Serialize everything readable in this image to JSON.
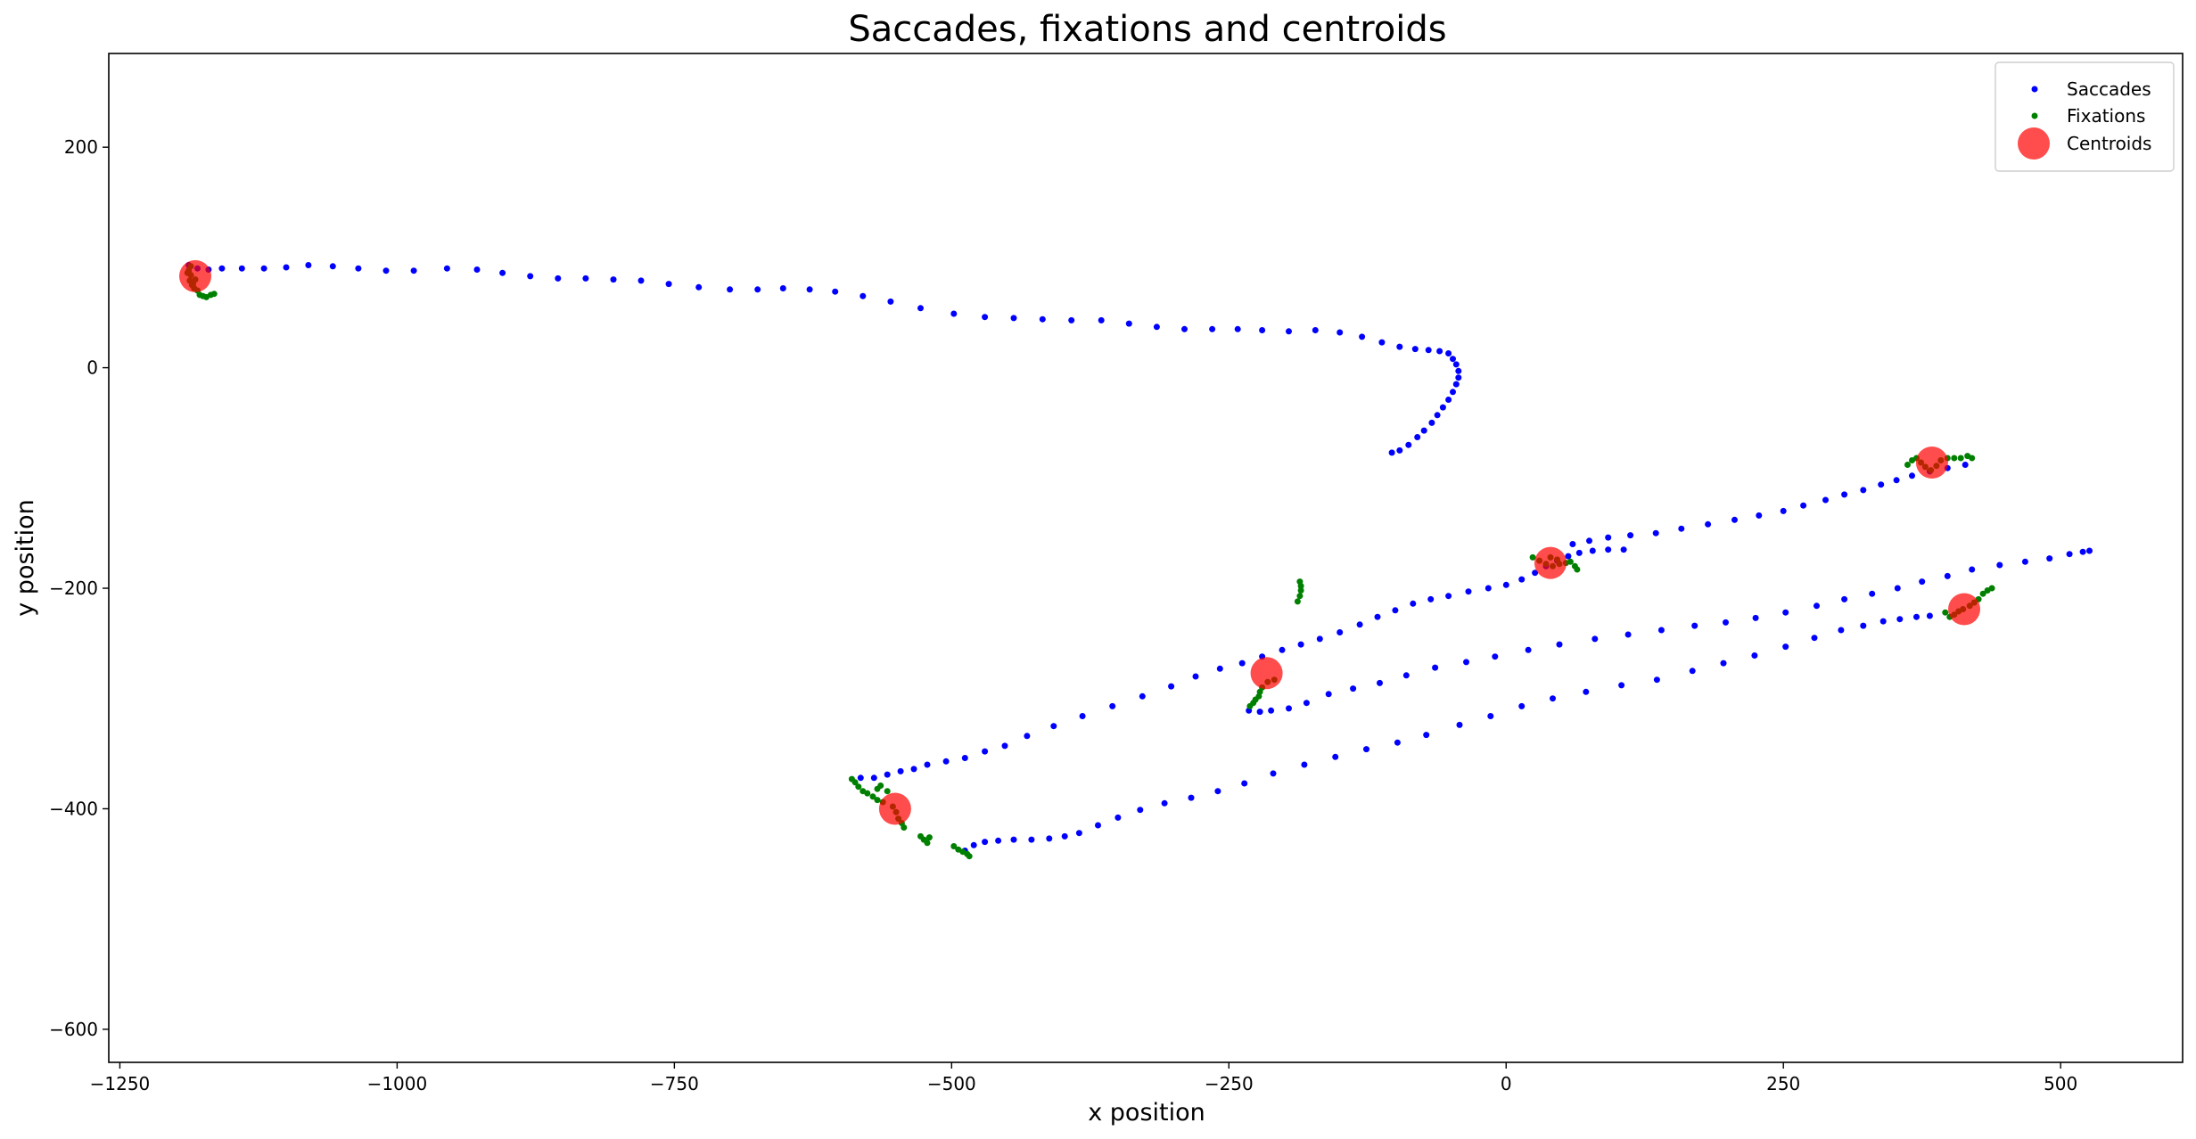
{
  "chart_data": {
    "type": "scatter",
    "title": "Saccades, fixations and centroids",
    "xlabel": "x position",
    "ylabel": "y position",
    "xlim": [
      -1260,
      610
    ],
    "ylim": [
      -630,
      285
    ],
    "xticks": [
      -1250,
      -1000,
      -750,
      -500,
      -250,
      0,
      250,
      500
    ],
    "yticks": [
      -600,
      -400,
      -200,
      0,
      200
    ],
    "grid": false,
    "legend_position": "top-right",
    "series": [
      {
        "name": "Saccades",
        "color": "#0000ff",
        "marker": "small-dot",
        "points": [
          [
            -1188,
            93
          ],
          [
            -1180,
            90
          ],
          [
            -1170,
            89
          ],
          [
            -1158,
            90
          ],
          [
            -1140,
            90
          ],
          [
            -1120,
            90
          ],
          [
            -1100,
            91
          ],
          [
            -1080,
            93
          ],
          [
            -1058,
            92
          ],
          [
            -1035,
            90
          ],
          [
            -1010,
            88
          ],
          [
            -985,
            88
          ],
          [
            -955,
            90
          ],
          [
            -928,
            89
          ],
          [
            -905,
            86
          ],
          [
            -880,
            83
          ],
          [
            -855,
            81
          ],
          [
            -830,
            81
          ],
          [
            -805,
            80
          ],
          [
            -780,
            79
          ],
          [
            -755,
            76
          ],
          [
            -728,
            73
          ],
          [
            -700,
            71
          ],
          [
            -675,
            71
          ],
          [
            -652,
            72
          ],
          [
            -628,
            71
          ],
          [
            -605,
            69
          ],
          [
            -580,
            65
          ],
          [
            -555,
            60
          ],
          [
            -528,
            54
          ],
          [
            -498,
            49
          ],
          [
            -470,
            46
          ],
          [
            -444,
            45
          ],
          [
            -418,
            44
          ],
          [
            -392,
            43
          ],
          [
            -365,
            43
          ],
          [
            -340,
            40
          ],
          [
            -315,
            37
          ],
          [
            -290,
            35
          ],
          [
            -265,
            35
          ],
          [
            -242,
            35
          ],
          [
            -220,
            34
          ],
          [
            -196,
            33
          ],
          [
            -172,
            34
          ],
          [
            -150,
            32
          ],
          [
            -130,
            28
          ],
          [
            -112,
            23
          ],
          [
            -96,
            19
          ],
          [
            -82,
            17
          ],
          [
            -70,
            16
          ],
          [
            -60,
            15
          ],
          [
            -52,
            13
          ],
          [
            -48,
            8
          ],
          [
            -45,
            3
          ],
          [
            -43,
            -3
          ],
          [
            -43,
            -9
          ],
          [
            -45,
            -15
          ],
          [
            -48,
            -22
          ],
          [
            -52,
            -29
          ],
          [
            -57,
            -36
          ],
          [
            -62,
            -43
          ],
          [
            -67,
            -50
          ],
          [
            -74,
            -57
          ],
          [
            -80,
            -63
          ],
          [
            -88,
            -70
          ],
          [
            -96,
            -75
          ],
          [
            -103,
            -77
          ],
          [
            -582,
            -372
          ],
          [
            -570,
            -372
          ],
          [
            -558,
            -369
          ],
          [
            -546,
            -366
          ],
          [
            -534,
            -364
          ],
          [
            -522,
            -360
          ],
          [
            -505,
            -357
          ],
          [
            -488,
            -354
          ],
          [
            -470,
            -348
          ],
          [
            -452,
            -343
          ],
          [
            -432,
            -334
          ],
          [
            -408,
            -325
          ],
          [
            -382,
            -316
          ],
          [
            -355,
            -307
          ],
          [
            -328,
            -298
          ],
          [
            -302,
            -289
          ],
          [
            -280,
            -280
          ],
          [
            -258,
            -273
          ],
          [
            -238,
            -268
          ],
          [
            -220,
            -262
          ],
          [
            -202,
            -256
          ],
          [
            -185,
            -251
          ],
          [
            -168,
            -246
          ],
          [
            -150,
            -240
          ],
          [
            -132,
            -233
          ],
          [
            -116,
            -226
          ],
          [
            -100,
            -220
          ],
          [
            -84,
            -214
          ],
          [
            -68,
            -210
          ],
          [
            -52,
            -207
          ],
          [
            -34,
            -203
          ],
          [
            -16,
            -200
          ],
          [
            0,
            -197
          ],
          [
            14,
            -192
          ],
          [
            26,
            -186
          ],
          [
            36,
            -180
          ],
          [
            46,
            -175
          ],
          [
            56,
            -171
          ],
          [
            66,
            -168
          ],
          [
            78,
            -166
          ],
          [
            92,
            -165
          ],
          [
            106,
            -165
          ],
          [
            60,
            -160
          ],
          [
            75,
            -157
          ],
          [
            92,
            -154
          ],
          [
            112,
            -152
          ],
          [
            135,
            -150
          ],
          [
            158,
            -146
          ],
          [
            182,
            -142
          ],
          [
            206,
            -138
          ],
          [
            228,
            -134
          ],
          [
            250,
            -130
          ],
          [
            268,
            -125
          ],
          [
            288,
            -120
          ],
          [
            305,
            -115
          ],
          [
            322,
            -111
          ],
          [
            338,
            -106
          ],
          [
            352,
            -102
          ],
          [
            366,
            -98
          ],
          [
            382,
            -94
          ],
          [
            398,
            -91
          ],
          [
            414,
            -88
          ],
          [
            -232,
            -311
          ],
          [
            -222,
            -312
          ],
          [
            -212,
            -311
          ],
          [
            -196,
            -309
          ],
          [
            -180,
            -304
          ],
          [
            -160,
            -296
          ],
          [
            -138,
            -291
          ],
          [
            -114,
            -286
          ],
          [
            -90,
            -279
          ],
          [
            -64,
            -272
          ],
          [
            -36,
            -267
          ],
          [
            -10,
            -262
          ],
          [
            20,
            -256
          ],
          [
            48,
            -251
          ],
          [
            80,
            -246
          ],
          [
            110,
            -242
          ],
          [
            140,
            -238
          ],
          [
            170,
            -234
          ],
          [
            198,
            -231
          ],
          [
            225,
            -227
          ],
          [
            252,
            -222
          ],
          [
            280,
            -216
          ],
          [
            305,
            -210
          ],
          [
            330,
            -205
          ],
          [
            353,
            -200
          ],
          [
            375,
            -194
          ],
          [
            398,
            -189
          ],
          [
            420,
            -183
          ],
          [
            445,
            -179
          ],
          [
            468,
            -176
          ],
          [
            490,
            -173
          ],
          [
            508,
            -169
          ],
          [
            520,
            -167
          ],
          [
            526,
            -166
          ],
          [
            -488,
            -438
          ],
          [
            -480,
            -433
          ],
          [
            -470,
            -430
          ],
          [
            -458,
            -429
          ],
          [
            -444,
            -428
          ],
          [
            -428,
            -428
          ],
          [
            -412,
            -427
          ],
          [
            -398,
            -425
          ],
          [
            -385,
            -422
          ],
          [
            -368,
            -415
          ],
          [
            -350,
            -408
          ],
          [
            -330,
            -401
          ],
          [
            -308,
            -395
          ],
          [
            -284,
            -390
          ],
          [
            -260,
            -384
          ],
          [
            -236,
            -377
          ],
          [
            -210,
            -368
          ],
          [
            -182,
            -360
          ],
          [
            -154,
            -353
          ],
          [
            -126,
            -346
          ],
          [
            -98,
            -340
          ],
          [
            -72,
            -333
          ],
          [
            -42,
            -324
          ],
          [
            -14,
            -316
          ],
          [
            14,
            -307
          ],
          [
            42,
            -300
          ],
          [
            72,
            -294
          ],
          [
            104,
            -288
          ],
          [
            136,
            -283
          ],
          [
            168,
            -275
          ],
          [
            196,
            -268
          ],
          [
            224,
            -261
          ],
          [
            252,
            -253
          ],
          [
            278,
            -245
          ],
          [
            302,
            -238
          ],
          [
            322,
            -234
          ],
          [
            340,
            -230
          ],
          [
            355,
            -228
          ],
          [
            370,
            -226
          ],
          [
            382,
            -225
          ]
        ]
      },
      {
        "name": "Fixations",
        "color": "#008000",
        "marker": "small-dot",
        "points": [
          [
            -1188,
            88
          ],
          [
            -1186,
            84
          ],
          [
            -1187,
            79
          ],
          [
            -1185,
            75
          ],
          [
            -1183,
            72
          ],
          [
            -1184,
            76
          ],
          [
            -1182,
            80
          ],
          [
            -1186,
            92
          ],
          [
            -1189,
            86
          ],
          [
            -1178,
            66
          ],
          [
            -1175,
            65
          ],
          [
            -1172,
            64
          ],
          [
            -1168,
            66
          ],
          [
            -1165,
            67
          ],
          [
            -1180,
            70
          ],
          [
            -590,
            -373
          ],
          [
            -587,
            -376
          ],
          [
            -584,
            -380
          ],
          [
            -580,
            -384
          ],
          [
            -576,
            -386
          ],
          [
            -571,
            -389
          ],
          [
            -567,
            -392
          ],
          [
            -562,
            -394
          ],
          [
            -567,
            -382
          ],
          [
            -564,
            -379
          ],
          [
            -558,
            -384
          ],
          [
            -553,
            -398
          ],
          [
            -550,
            -403
          ],
          [
            -548,
            -409
          ],
          [
            -545,
            -413
          ],
          [
            -543,
            -417
          ],
          [
            -528,
            -425
          ],
          [
            -525,
            -428
          ],
          [
            -522,
            -431
          ],
          [
            -520,
            -426
          ],
          [
            -498,
            -434
          ],
          [
            -494,
            -437
          ],
          [
            -490,
            -439
          ],
          [
            -486,
            -441
          ],
          [
            -484,
            -443
          ],
          [
            -231,
            -307
          ],
          [
            -228,
            -304
          ],
          [
            -226,
            -301
          ],
          [
            -223,
            -298
          ],
          [
            -222,
            -294
          ],
          [
            -220,
            -290
          ],
          [
            -215,
            -285
          ],
          [
            -209,
            -283
          ],
          [
            -186,
            -194
          ],
          [
            -185,
            -198
          ],
          [
            -185,
            -202
          ],
          [
            -186,
            -207
          ],
          [
            -188,
            -212
          ],
          [
            24,
            -172
          ],
          [
            30,
            -175
          ],
          [
            36,
            -178
          ],
          [
            42,
            -180
          ],
          [
            48,
            -178
          ],
          [
            54,
            -177
          ],
          [
            58,
            -176
          ],
          [
            62,
            -180
          ],
          [
            64,
            -183
          ],
          [
            40,
            -172
          ],
          [
            46,
            -174
          ],
          [
            362,
            -88
          ],
          [
            366,
            -84
          ],
          [
            370,
            -82
          ],
          [
            374,
            -86
          ],
          [
            378,
            -90
          ],
          [
            383,
            -93
          ],
          [
            388,
            -89
          ],
          [
            392,
            -84
          ],
          [
            398,
            -82
          ],
          [
            404,
            -82
          ],
          [
            410,
            -82
          ],
          [
            416,
            -80
          ],
          [
            420,
            -82
          ],
          [
            396,
            -222
          ],
          [
            400,
            -226
          ],
          [
            404,
            -224
          ],
          [
            408,
            -221
          ],
          [
            412,
            -219
          ],
          [
            418,
            -216
          ],
          [
            422,
            -213
          ],
          [
            426,
            -210
          ],
          [
            430,
            -205
          ],
          [
            434,
            -202
          ],
          [
            438,
            -200
          ]
        ]
      },
      {
        "name": "Centroids",
        "color": "#ff0000",
        "marker": "large-circle",
        "points": [
          [
            -1182,
            83
          ],
          [
            -551,
            -400
          ],
          [
            -216,
            -277
          ],
          [
            40,
            -177
          ],
          [
            384,
            -86
          ],
          [
            413,
            -219
          ]
        ]
      }
    ]
  }
}
